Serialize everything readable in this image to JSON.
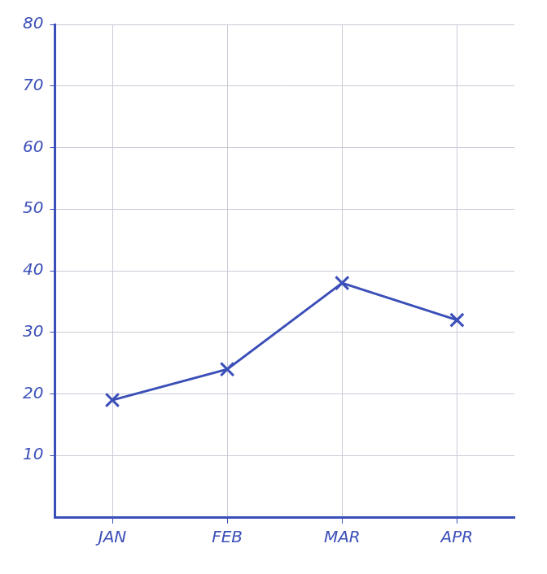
{
  "chart_data": {
    "type": "line",
    "categories": [
      "JAN",
      "FEB",
      "MAR",
      "APR"
    ],
    "values": [
      19,
      24,
      38,
      32
    ],
    "color": "#3b4fb8",
    "marker": "x",
    "ylim": [
      0,
      80
    ],
    "yticks": [
      10,
      20,
      30,
      40,
      50,
      60,
      70,
      80
    ],
    "grid": true
  }
}
